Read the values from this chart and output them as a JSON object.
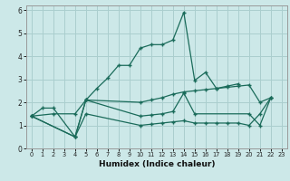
{
  "xlabel": "Humidex (Indice chaleur)",
  "background_color": "#cce8e8",
  "grid_color": "#aacece",
  "line_color": "#1a6b5a",
  "xlim": [
    -0.5,
    23.5
  ],
  "ylim": [
    0,
    6.2
  ],
  "figsize": [
    3.2,
    2.0
  ],
  "dpi": 100,
  "series": [
    {
      "x": [
        0,
        1,
        2,
        4,
        5,
        6,
        7,
        8,
        9,
        10,
        11,
        12,
        13,
        14,
        15,
        16,
        17,
        18,
        19,
        20,
        21,
        22
      ],
      "y": [
        1.4,
        1.75,
        1.75,
        0.5,
        2.1,
        2.6,
        3.05,
        3.6,
        3.6,
        4.35,
        4.5,
        4.5,
        4.7,
        5.9,
        2.95,
        3.3,
        2.6,
        2.7,
        2.8,
        null,
        null,
        null
      ]
    },
    {
      "x": [
        0,
        2,
        4,
        5,
        10,
        11,
        12,
        13,
        14,
        15,
        16,
        17,
        18,
        19,
        20,
        21,
        22
      ],
      "y": [
        1.4,
        1.5,
        1.5,
        2.1,
        2.0,
        2.1,
        2.2,
        2.35,
        2.45,
        2.5,
        2.55,
        2.6,
        2.65,
        2.7,
        2.75,
        2.0,
        2.2
      ]
    },
    {
      "x": [
        0,
        4,
        5,
        10,
        11,
        12,
        13,
        14,
        15,
        16,
        17,
        18,
        19,
        20,
        21,
        22
      ],
      "y": [
        1.4,
        0.5,
        1.5,
        1.0,
        1.05,
        1.1,
        1.15,
        1.2,
        1.1,
        1.1,
        1.1,
        1.1,
        1.1,
        1.0,
        1.5,
        2.2
      ]
    },
    {
      "x": [
        0,
        4,
        5,
        10,
        11,
        12,
        13,
        14,
        15,
        20,
        21,
        22
      ],
      "y": [
        1.4,
        0.5,
        2.1,
        1.4,
        1.45,
        1.5,
        1.6,
        2.4,
        1.5,
        1.5,
        1.0,
        2.2
      ]
    }
  ]
}
